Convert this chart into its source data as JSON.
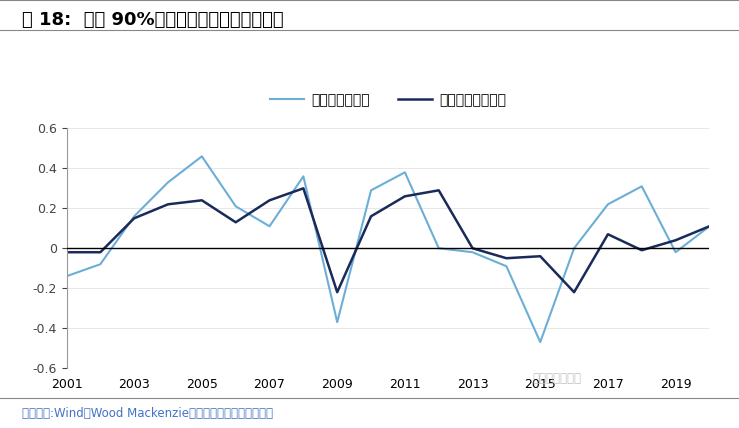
{
  "title": "图 18:  矿山 90%分位线与原油价格变动关系",
  "footnote": "资料来源:Wind、Wood Mackenzie、国信证券经济研究所整理",
  "watermark": "刘孟晰有色研究",
  "legend": [
    "原油年均价同比",
    "当年成本下移比例"
  ],
  "years": [
    2001,
    2002,
    2003,
    2004,
    2005,
    2006,
    2007,
    2008,
    2009,
    2010,
    2011,
    2012,
    2013,
    2014,
    2015,
    2016,
    2017,
    2018,
    2019,
    2020
  ],
  "series1": [
    -0.14,
    -0.08,
    0.16,
    0.33,
    0.46,
    0.21,
    0.11,
    0.36,
    -0.37,
    0.29,
    0.38,
    0.0,
    -0.02,
    -0.09,
    -0.47,
    0.0,
    0.22,
    0.31,
    -0.02,
    0.11
  ],
  "series2": [
    -0.02,
    -0.02,
    0.15,
    0.22,
    0.24,
    0.13,
    0.24,
    0.3,
    -0.22,
    0.16,
    0.26,
    0.29,
    0.0,
    -0.05,
    -0.04,
    -0.22,
    0.07,
    -0.01,
    0.04,
    0.11
  ],
  "color1": "#6BAED6",
  "color2": "#1A2B5A",
  "ylim": [
    -0.6,
    0.6
  ],
  "yticks": [
    -0.6,
    -0.4,
    -0.2,
    0.0,
    0.2,
    0.4,
    0.6
  ],
  "xtick_years": [
    2001,
    2003,
    2005,
    2007,
    2009,
    2011,
    2013,
    2015,
    2017,
    2019
  ],
  "bg_color": "#FFFFFF",
  "title_fontsize": 13,
  "legend_fontsize": 10,
  "tick_fontsize": 9,
  "footnote_fontsize": 8.5
}
